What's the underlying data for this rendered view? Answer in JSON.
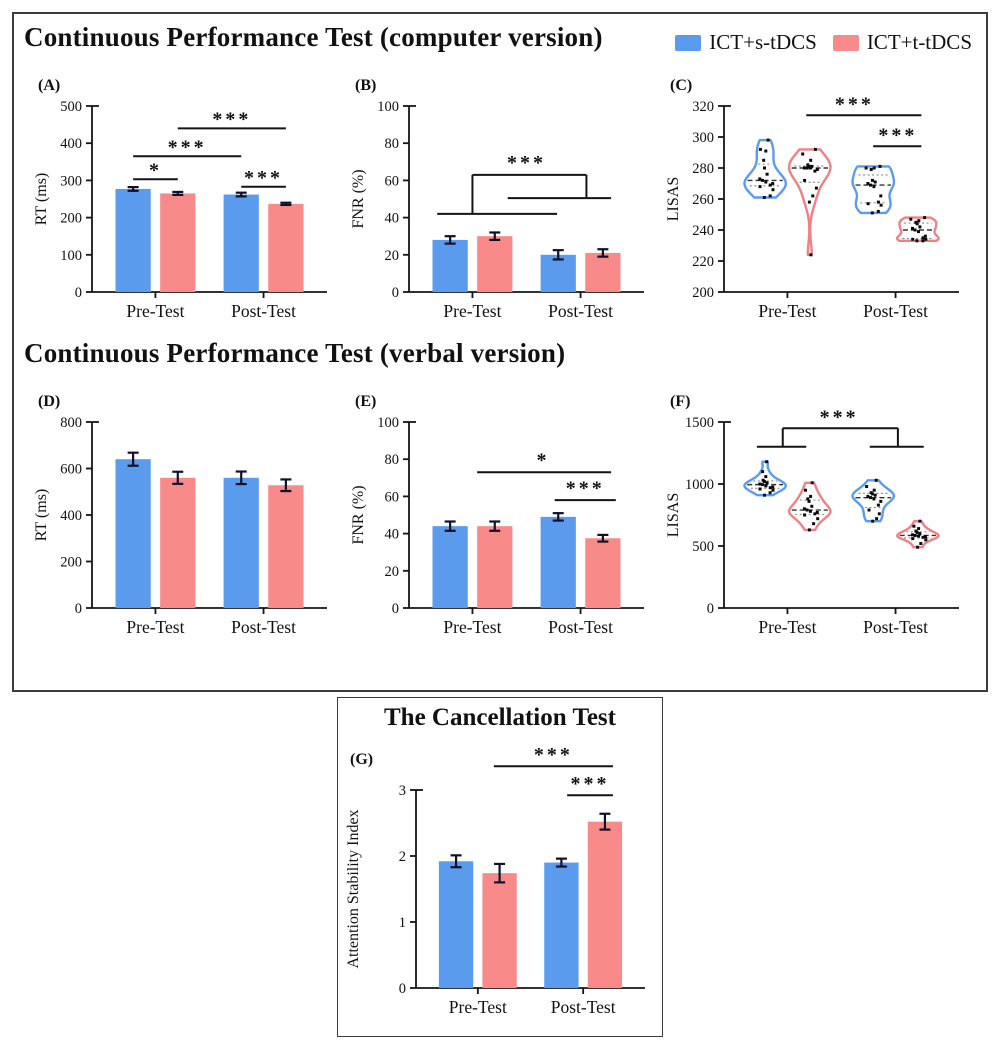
{
  "figure": {
    "sections": [
      {
        "title": "Continuous Performance Test (computer version)"
      },
      {
        "title": "Continuous Performance Test (verbal version)"
      },
      {
        "title": "The Cancellation Test"
      }
    ],
    "legend": {
      "items": [
        {
          "label": "ICT+s-tDCS",
          "color": "#5b9bee"
        },
        {
          "label": "ICT+t-tDCS",
          "color": "#f88a8a"
        }
      ]
    }
  },
  "chart_data": [
    {
      "id": "A",
      "panel_label": "(A)",
      "type": "bar",
      "title": "",
      "xlabel": "",
      "ylabel": "RT (ms)",
      "ylim": [
        0,
        500
      ],
      "ytick_step": 100,
      "categories": [
        "Pre-Test",
        "Post-Test"
      ],
      "series": [
        {
          "name": "ICT+s-tDCS",
          "color": "#5b9bee",
          "values": [
            277,
            262
          ],
          "errors": [
            5,
            5
          ]
        },
        {
          "name": "ICT+t-tDCS",
          "color": "#f88a8a",
          "values": [
            265,
            237
          ],
          "errors": [
            4,
            3
          ]
        }
      ],
      "annotations": {
        "segments": [
          [
            0.175,
            303,
            0.365,
            303
          ],
          [
            0.175,
            365,
            0.635,
            365
          ],
          [
            0.365,
            440,
            0.825,
            440
          ],
          [
            0.635,
            283,
            0.825,
            283
          ]
        ],
        "stars": [
          {
            "x": 0.27,
            "y": 310,
            "text": "*"
          },
          {
            "x": 0.405,
            "y": 372,
            "text": "***"
          },
          {
            "x": 0.595,
            "y": 447,
            "text": "***"
          },
          {
            "x": 0.73,
            "y": 290,
            "text": "***"
          }
        ]
      }
    },
    {
      "id": "B",
      "panel_label": "(B)",
      "type": "bar",
      "title": "",
      "xlabel": "",
      "ylabel": "FNR (%)",
      "ylim": [
        0,
        100
      ],
      "ytick_step": 20,
      "categories": [
        "Pre-Test",
        "Post-Test"
      ],
      "series": [
        {
          "name": "ICT+s-tDCS",
          "color": "#5b9bee",
          "values": [
            28,
            20
          ],
          "errors": [
            2,
            2.5
          ]
        },
        {
          "name": "ICT+t-tDCS",
          "color": "#f88a8a",
          "values": [
            30,
            21
          ],
          "errors": [
            2,
            2
          ]
        }
      ],
      "annotations": {
        "segments": [
          [
            0.12,
            42,
            0.63,
            42
          ],
          [
            0.42,
            50.5,
            0.86,
            50.5
          ],
          [
            0.27,
            42,
            0.27,
            63
          ],
          [
            0.27,
            63,
            0.755,
            63
          ],
          [
            0.755,
            50.5,
            0.755,
            63
          ]
        ],
        "stars": [
          {
            "x": 0.5,
            "y": 66,
            "text": "***"
          }
        ]
      }
    },
    {
      "id": "C",
      "panel_label": "(C)",
      "type": "violin",
      "title": "",
      "xlabel": "",
      "ylabel": "LISAS",
      "ylim": [
        200,
        320
      ],
      "ytick_step": 20,
      "categories": [
        "Pre-Test",
        "Post-Test"
      ],
      "series": [
        {
          "name": "ICT+s-tDCS",
          "color": "#5b9bee",
          "points": [
            [
              298,
              292,
              291,
              285,
              280,
              276,
              273,
              272,
              271,
              270,
              269,
              268,
              266,
              262,
              261
            ],
            [
              281,
              280,
              280,
              279,
              272,
              271,
              270,
              269,
              268,
              262,
              258,
              257,
              256,
              252,
              251
            ]
          ]
        },
        {
          "name": "ICT+t-tDCS",
          "color": "#ef8085",
          "points": [
            [
              292,
              289,
              285,
              282,
              281,
              281,
              280,
              280,
              280,
              279,
              278,
              272,
              267,
              262,
              258,
              224
            ],
            [
              248,
              247,
              246,
              245,
              244,
              242,
              241,
              240,
              239,
              236,
              235,
              234,
              234,
              233,
              233
            ]
          ]
        }
      ],
      "annotations": {
        "segments": [
          [
            0.35,
            314,
            0.84,
            314
          ],
          [
            0.635,
            294,
            0.84,
            294
          ]
        ],
        "stars": [
          {
            "x": 0.555,
            "y": 317,
            "text": "***"
          },
          {
            "x": 0.74,
            "y": 297,
            "text": "***"
          }
        ]
      }
    },
    {
      "id": "D",
      "panel_label": "(D)",
      "type": "bar",
      "title": "",
      "xlabel": "",
      "ylabel": "RT (ms)",
      "ylim": [
        0,
        800
      ],
      "ytick_step": 200,
      "categories": [
        "Pre-Test",
        "Post-Test"
      ],
      "series": [
        {
          "name": "ICT+s-tDCS",
          "color": "#5b9bee",
          "values": [
            640,
            560
          ],
          "errors": [
            28,
            27
          ]
        },
        {
          "name": "ICT+t-tDCS",
          "color": "#f88a8a",
          "values": [
            560,
            528
          ],
          "errors": [
            26,
            25
          ]
        }
      ],
      "annotations": {
        "segments": [],
        "stars": []
      }
    },
    {
      "id": "E",
      "panel_label": "(E)",
      "type": "bar",
      "title": "",
      "xlabel": "",
      "ylabel": "FNR (%)",
      "ylim": [
        0,
        100
      ],
      "ytick_step": 20,
      "categories": [
        "Pre-Test",
        "Post-Test"
      ],
      "series": [
        {
          "name": "ICT+s-tDCS",
          "color": "#5b9bee",
          "values": [
            44,
            49
          ],
          "errors": [
            2.5,
            2
          ]
        },
        {
          "name": "ICT+t-tDCS",
          "color": "#f88a8a",
          "values": [
            44,
            37.5
          ],
          "errors": [
            2.5,
            1.8
          ]
        }
      ],
      "annotations": {
        "segments": [
          [
            0.29,
            73,
            0.86,
            73
          ],
          [
            0.62,
            58,
            0.88,
            58
          ]
        ],
        "stars": [
          {
            "x": 0.57,
            "y": 76,
            "text": "*"
          },
          {
            "x": 0.75,
            "y": 61,
            "text": "***"
          }
        ]
      }
    },
    {
      "id": "F",
      "panel_label": "(F)",
      "type": "violin",
      "title": "",
      "xlabel": "",
      "ylabel": "LISAS",
      "ylim": [
        0,
        1500
      ],
      "ytick_step": 500,
      "categories": [
        "Pre-Test",
        "Post-Test"
      ],
      "series": [
        {
          "name": "ICT+s-tDCS",
          "color": "#5b9bee",
          "points": [
            [
              1180,
              1100,
              1060,
              1030,
              1020,
              1010,
              1000,
              995,
              985,
              975,
              970,
              960,
              950,
              930,
              910
            ],
            [
              1030,
              980,
              950,
              930,
              920,
              910,
              900,
              890,
              880,
              860,
              830,
              790,
              760,
              720,
              700
            ]
          ]
        },
        {
          "name": "ICT+t-tDCS",
          "color": "#ef8085",
          "points": [
            [
              1010,
              950,
              900,
              880,
              860,
              820,
              800,
              790,
              780,
              770,
              760,
              750,
              720,
              680,
              630
            ],
            [
              700,
              660,
              640,
              620,
              610,
              600,
              590,
              585,
              580,
              575,
              570,
              560,
              550,
              520,
              490
            ]
          ]
        }
      ],
      "annotations": {
        "segments": [
          [
            0.14,
            1300,
            0.35,
            1300
          ],
          [
            0.62,
            1300,
            0.85,
            1300
          ],
          [
            0.25,
            1300,
            0.25,
            1450
          ],
          [
            0.25,
            1450,
            0.74,
            1450
          ],
          [
            0.74,
            1300,
            0.74,
            1450
          ]
        ],
        "stars": [
          {
            "x": 0.49,
            "y": 1488,
            "text": "***"
          }
        ]
      }
    },
    {
      "id": "G",
      "panel_label": "(G)",
      "type": "bar",
      "title": "",
      "xlabel": "",
      "ylabel": "Attention Stability Index",
      "ylim": [
        0,
        3
      ],
      "ytick_step": 1,
      "categories": [
        "Pre-Test",
        "Post-Test"
      ],
      "series": [
        {
          "name": "ICT+s-tDCS",
          "color": "#5b9bee",
          "values": [
            1.92,
            1.9
          ],
          "errors": [
            0.09,
            0.06
          ]
        },
        {
          "name": "ICT+t-tDCS",
          "color": "#f88a8a",
          "values": [
            1.74,
            2.52
          ],
          "errors": [
            0.14,
            0.12
          ]
        }
      ],
      "annotations": {
        "segments": [
          [
            0.34,
            3.36,
            0.86,
            3.36
          ],
          [
            0.66,
            2.92,
            0.86,
            2.92
          ]
        ],
        "stars": [
          {
            "x": 0.6,
            "y": 3.44,
            "text": "***"
          },
          {
            "x": 0.76,
            "y": 3.0,
            "text": "***"
          }
        ]
      }
    }
  ]
}
